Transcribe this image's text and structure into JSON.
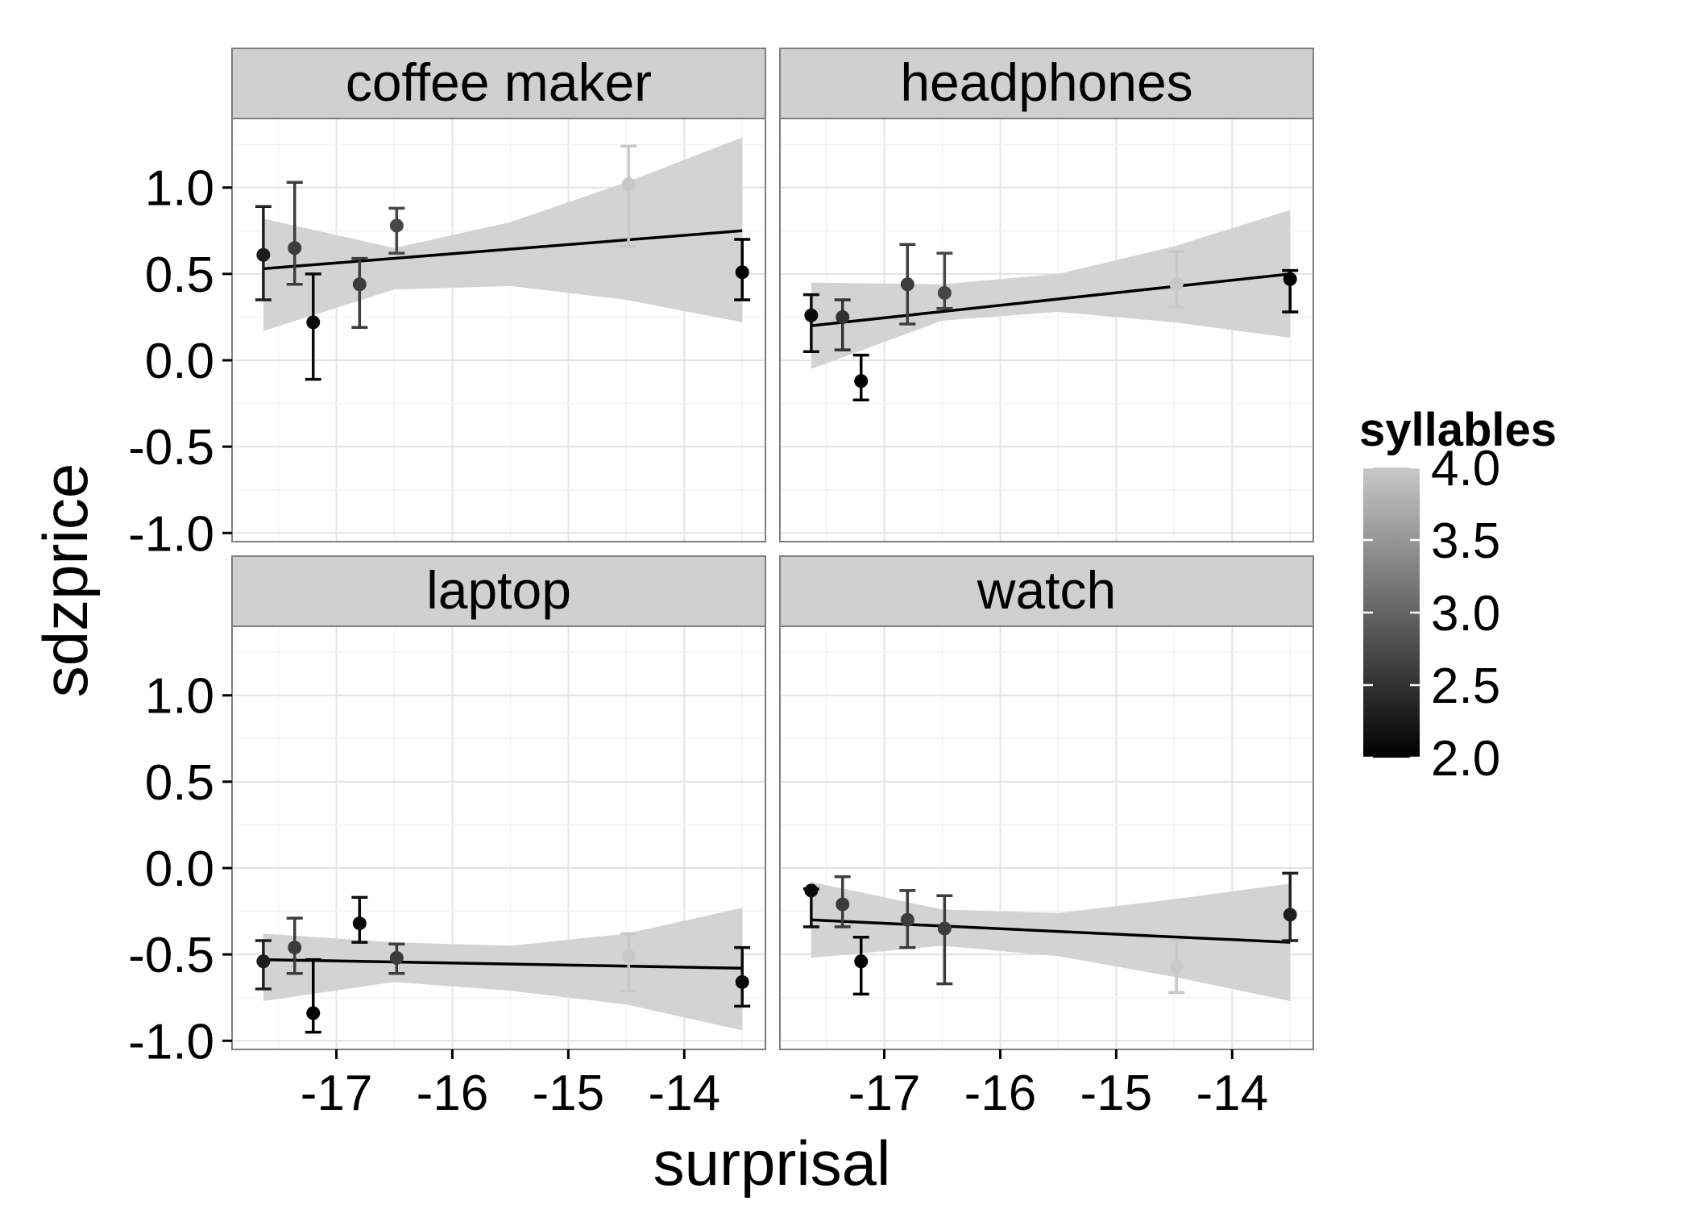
{
  "chart_data": {
    "type": "scatter",
    "xlabel": "surprisal",
    "ylabel": "sdzprice",
    "xlim": [
      -17.9,
      -13.3
    ],
    "ylim": [
      -1.05,
      1.4
    ],
    "x_ticks": [
      -17,
      -16,
      -15,
      -14
    ],
    "x_tick_labels": [
      "-17",
      "-16",
      "-15",
      "-14"
    ],
    "y_ticks": [
      -1.0,
      -0.5,
      0.0,
      0.5,
      1.0
    ],
    "y_tick_labels": [
      "-1.0",
      "-0.5",
      "0.0",
      "0.5",
      "1.0"
    ],
    "grid": true,
    "legend": {
      "title": "syllables",
      "placement": "right",
      "type": "colorbar",
      "range": [
        2.0,
        4.0
      ],
      "ticks": [
        2.0,
        2.5,
        3.0,
        3.5,
        4.0
      ],
      "tick_labels": [
        "2.0",
        "2.5",
        "3.0",
        "3.5",
        "4.0"
      ],
      "color_low": "#000000",
      "color_high": "#c8c8c8"
    },
    "ribbon_color": "#d3d3d3",
    "panel_strip_color": "#d0d0d0",
    "panels": [
      {
        "name": "coffee maker",
        "points": [
          {
            "x": -17.63,
            "y": 0.61,
            "lo": 0.35,
            "hi": 0.89,
            "syllables": 2.3
          },
          {
            "x": -17.36,
            "y": 0.65,
            "lo": 0.44,
            "hi": 1.03,
            "syllables": 2.6
          },
          {
            "x": -17.2,
            "y": 0.22,
            "lo": -0.11,
            "hi": 0.5,
            "syllables": 2.1
          },
          {
            "x": -16.8,
            "y": 0.44,
            "lo": 0.19,
            "hi": 0.59,
            "syllables": 2.6
          },
          {
            "x": -16.48,
            "y": 0.78,
            "lo": 0.62,
            "hi": 0.88,
            "syllables": 2.7
          },
          {
            "x": -14.48,
            "y": 1.02,
            "lo": 0.66,
            "hi": 1.24,
            "syllables": 4.0
          },
          {
            "x": -13.5,
            "y": 0.51,
            "lo": 0.35,
            "hi": 0.7,
            "syllables": 2.0
          }
        ],
        "fit": {
          "x": [
            -17.63,
            -13.5
          ],
          "y": [
            0.53,
            0.75
          ]
        },
        "band": {
          "x": [
            -17.63,
            -16.5,
            -15.5,
            -14.5,
            -13.5
          ],
          "lo": [
            0.17,
            0.41,
            0.43,
            0.35,
            0.22
          ],
          "hi": [
            0.82,
            0.65,
            0.8,
            1.03,
            1.29
          ]
        }
      },
      {
        "name": "headphones",
        "points": [
          {
            "x": -17.63,
            "y": 0.26,
            "lo": 0.05,
            "hi": 0.38,
            "syllables": 2.1
          },
          {
            "x": -17.36,
            "y": 0.25,
            "lo": 0.06,
            "hi": 0.35,
            "syllables": 2.5
          },
          {
            "x": -17.2,
            "y": -0.12,
            "lo": -0.23,
            "hi": 0.03,
            "syllables": 2.0
          },
          {
            "x": -16.8,
            "y": 0.44,
            "lo": 0.21,
            "hi": 0.67,
            "syllables": 2.6
          },
          {
            "x": -16.48,
            "y": 0.39,
            "lo": 0.3,
            "hi": 0.62,
            "syllables": 2.7
          },
          {
            "x": -14.48,
            "y": 0.44,
            "lo": 0.31,
            "hi": 0.63,
            "syllables": 4.0
          },
          {
            "x": -13.5,
            "y": 0.47,
            "lo": 0.28,
            "hi": 0.52,
            "syllables": 2.0
          }
        ],
        "fit": {
          "x": [
            -17.63,
            -13.5
          ],
          "y": [
            0.2,
            0.5
          ]
        },
        "band": {
          "x": [
            -17.63,
            -16.5,
            -15.5,
            -14.5,
            -13.5
          ],
          "lo": [
            -0.05,
            0.23,
            0.28,
            0.22,
            0.13
          ],
          "hi": [
            0.45,
            0.44,
            0.5,
            0.66,
            0.87
          ]
        }
      },
      {
        "name": "laptop",
        "points": [
          {
            "x": -17.63,
            "y": -0.54,
            "lo": -0.7,
            "hi": -0.42,
            "syllables": 2.3
          },
          {
            "x": -17.36,
            "y": -0.46,
            "lo": -0.61,
            "hi": -0.29,
            "syllables": 2.6
          },
          {
            "x": -17.2,
            "y": -0.84,
            "lo": -0.95,
            "hi": -0.53,
            "syllables": 2.0
          },
          {
            "x": -16.8,
            "y": -0.32,
            "lo": -0.43,
            "hi": -0.17,
            "syllables": 2.1
          },
          {
            "x": -16.48,
            "y": -0.52,
            "lo": -0.61,
            "hi": -0.44,
            "syllables": 2.6
          },
          {
            "x": -14.48,
            "y": -0.51,
            "lo": -0.71,
            "hi": -0.38,
            "syllables": 4.0
          },
          {
            "x": -13.5,
            "y": -0.66,
            "lo": -0.8,
            "hi": -0.46,
            "syllables": 2.1
          }
        ],
        "fit": {
          "x": [
            -17.63,
            -13.5
          ],
          "y": [
            -0.53,
            -0.58
          ]
        },
        "band": {
          "x": [
            -17.63,
            -16.5,
            -15.5,
            -14.5,
            -13.5
          ],
          "lo": [
            -0.77,
            -0.66,
            -0.71,
            -0.79,
            -0.94
          ],
          "hi": [
            -0.38,
            -0.43,
            -0.45,
            -0.38,
            -0.23
          ]
        }
      },
      {
        "name": "watch",
        "points": [
          {
            "x": -17.63,
            "y": -0.13,
            "lo": -0.34,
            "hi": -0.12,
            "syllables": 2.1
          },
          {
            "x": -17.36,
            "y": -0.21,
            "lo": -0.34,
            "hi": -0.05,
            "syllables": 2.6
          },
          {
            "x": -17.2,
            "y": -0.54,
            "lo": -0.73,
            "hi": -0.4,
            "syllables": 2.0
          },
          {
            "x": -16.8,
            "y": -0.3,
            "lo": -0.46,
            "hi": -0.13,
            "syllables": 2.6
          },
          {
            "x": -16.48,
            "y": -0.35,
            "lo": -0.67,
            "hi": -0.16,
            "syllables": 2.6
          },
          {
            "x": -14.48,
            "y": -0.57,
            "lo": -0.72,
            "hi": -0.42,
            "syllables": 4.0
          },
          {
            "x": -13.5,
            "y": -0.27,
            "lo": -0.42,
            "hi": -0.03,
            "syllables": 2.3
          }
        ],
        "fit": {
          "x": [
            -17.63,
            -13.5
          ],
          "y": [
            -0.3,
            -0.43
          ]
        },
        "band": {
          "x": [
            -17.63,
            -16.5,
            -15.5,
            -14.5,
            -13.5
          ],
          "lo": [
            -0.52,
            -0.45,
            -0.51,
            -0.63,
            -0.77
          ],
          "hi": [
            -0.08,
            -0.24,
            -0.26,
            -0.18,
            -0.09
          ]
        }
      }
    ]
  }
}
